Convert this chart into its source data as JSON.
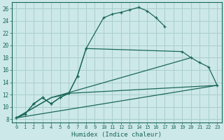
{
  "xlabel": "Humidex (Indice chaleur)",
  "bg_color": "#cce8e8",
  "grid_color": "#aacece",
  "line_color": "#1a6858",
  "xlim": [
    -0.5,
    23.5
  ],
  "ylim": [
    7.5,
    27
  ],
  "xticks": [
    0,
    1,
    2,
    3,
    4,
    5,
    6,
    7,
    8,
    9,
    10,
    11,
    12,
    13,
    14,
    15,
    16,
    17,
    18,
    19,
    20,
    21,
    22,
    23
  ],
  "yticks": [
    8,
    10,
    12,
    14,
    16,
    18,
    20,
    22,
    24,
    26
  ],
  "curve1_x": [
    0,
    1,
    2,
    3,
    4,
    5,
    6,
    7,
    8,
    10,
    11,
    12,
    13,
    14,
    15,
    16,
    17
  ],
  "curve1_y": [
    8.2,
    8.8,
    10.5,
    11.5,
    10.5,
    11.5,
    12.2,
    15.0,
    19.5,
    24.5,
    25.1,
    25.4,
    25.8,
    26.2,
    25.6,
    24.5,
    23.1
  ],
  "curve2_x": [
    0,
    1,
    2,
    3,
    4,
    5,
    6,
    7,
    8,
    19,
    20,
    21,
    22,
    23
  ],
  "curve2_y": [
    8.2,
    8.8,
    10.5,
    11.5,
    10.5,
    11.5,
    12.2,
    15.0,
    19.5,
    19.0,
    18.0,
    17.2,
    16.5,
    13.5
  ],
  "line1_x": [
    0,
    4,
    20
  ],
  "line1_y": [
    8.2,
    11.5,
    18.0
  ],
  "line2_x": [
    0,
    4,
    5,
    6,
    23
  ],
  "line2_y": [
    8.2,
    11.5,
    11.8,
    12.2,
    13.5
  ],
  "line3_x": [
    0,
    23
  ],
  "line3_y": [
    8.2,
    13.5
  ]
}
